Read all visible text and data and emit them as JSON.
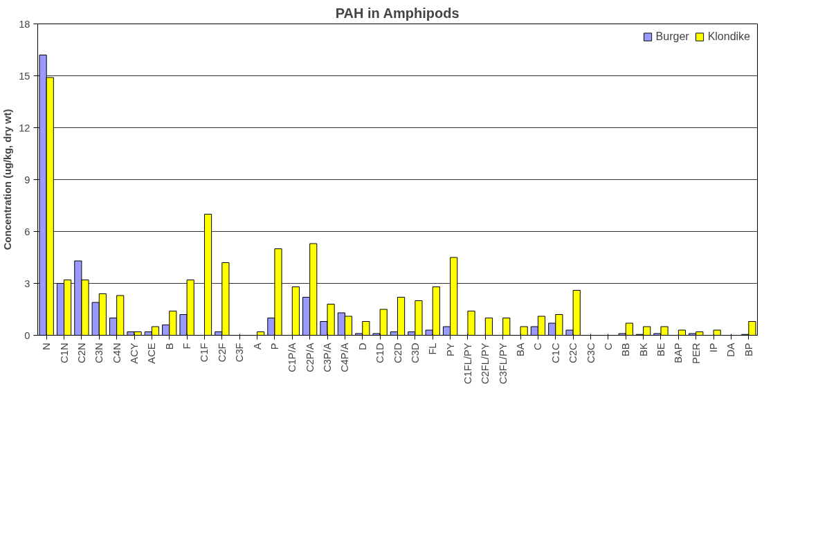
{
  "chart_data": {
    "type": "bar",
    "title": "PAH in Amphipods",
    "ylabel": "Concentration (ug/kg, dry wt)",
    "categories": [
      "N",
      "C1N",
      "C2N",
      "C3N",
      "C4N",
      "ACY",
      "ACE",
      "B",
      "F",
      "C1F",
      "C2F",
      "C3F",
      "A",
      "P",
      "C1P/A",
      "C2P/A",
      "C3P/A",
      "C4P/A",
      "D",
      "C1D",
      "C2D",
      "C3D",
      "FL",
      "PY",
      "C1FL/PY",
      "C2FL/PY",
      "C3FL/PY",
      "BA",
      "C",
      "C1C",
      "C2C",
      "C3C",
      "C",
      "BB",
      "BK",
      "BE",
      "BAP",
      "PER",
      "IP",
      "DA",
      "BP"
    ],
    "series": [
      {
        "name": "Burger",
        "color": "#9999ff",
        "values": [
          16.2,
          3.0,
          4.3,
          1.9,
          1.0,
          0.2,
          0.2,
          0.6,
          1.2,
          null,
          0.2,
          null,
          null,
          1.0,
          null,
          2.2,
          0.8,
          1.3,
          0.1,
          0.1,
          0.2,
          0.2,
          0.3,
          0.5,
          null,
          null,
          null,
          null,
          0.5,
          0.7,
          0.3,
          null,
          null,
          0.1,
          0.05,
          0.1,
          null,
          0.1,
          null,
          null,
          0.05
        ]
      },
      {
        "name": "Klondike",
        "color": "#ffff00",
        "values": [
          14.9,
          3.2,
          3.2,
          2.4,
          2.3,
          0.2,
          0.5,
          1.4,
          3.2,
          7.0,
          4.2,
          null,
          0.2,
          5.0,
          2.8,
          5.3,
          1.8,
          1.1,
          0.8,
          1.5,
          2.2,
          2.0,
          2.8,
          4.5,
          1.4,
          1.0,
          1.0,
          0.5,
          1.1,
          1.2,
          2.6,
          null,
          null,
          0.7,
          0.5,
          0.5,
          0.3,
          0.2,
          0.3,
          null,
          0.8
        ]
      }
    ],
    "ylim": [
      0,
      18
    ],
    "yticks": [
      0,
      3,
      6,
      9,
      12,
      15,
      18
    ],
    "grid": "y",
    "legend": "top right"
  }
}
